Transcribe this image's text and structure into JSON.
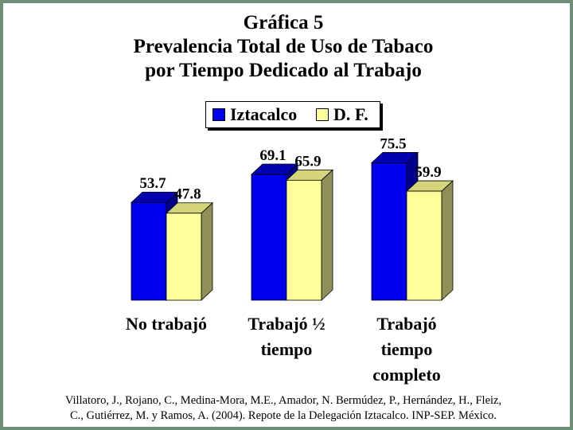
{
  "colors": {
    "background": "#ffffff",
    "border": "#6f8f76",
    "series1_front": "#0000ee",
    "series1_side": "#00008b",
    "series1_top": "#0000b0",
    "series2_front": "#ffff99",
    "series2_side": "#8f8f57",
    "series2_top": "#d4d47a"
  },
  "title_lines": [
    "Gráfica 5",
    "Prevalencia Total de Uso de Tabaco",
    "por Tiempo Dedicado al Trabajo"
  ],
  "category_labels": [
    [
      "No trabajó"
    ],
    [
      "Trabajó ½",
      "tiempo"
    ],
    [
      "Trabajó",
      "tiempo",
      "completo"
    ]
  ],
  "citation_lines": [
    "Villatoro, J., Rojano, C., Medina-Mora, M.E., Amador, N. Bermúdez, P., Hernández, H., Fleiz,",
    "C., Gutiérrez, M. y Ramos, A. (2004). Repote de la Delegación Iztacalco. INP-SEP. México."
  ],
  "chart_data": {
    "type": "bar",
    "style": "3d-clustered",
    "title": "Gráfica 5 Prevalencia Total de Uso de Tabaco por Tiempo Dedicado al Trabajo",
    "categories": [
      "No trabajó",
      "Trabajó ½ tiempo",
      "Trabajó tiempo completo"
    ],
    "series": [
      {
        "name": "Iztacalco",
        "values": [
          53.7,
          69.1,
          75.5
        ]
      },
      {
        "name": "D. F.",
        "values": [
          47.8,
          65.9,
          59.9
        ]
      }
    ],
    "data_labels": [
      [
        "53.7",
        "69.1",
        "75.5"
      ],
      [
        "47.8",
        "65.9",
        "59.9"
      ]
    ],
    "xlabel": "",
    "ylabel": "",
    "grid": false,
    "axis_visible": false,
    "legend_position": "top-center"
  }
}
